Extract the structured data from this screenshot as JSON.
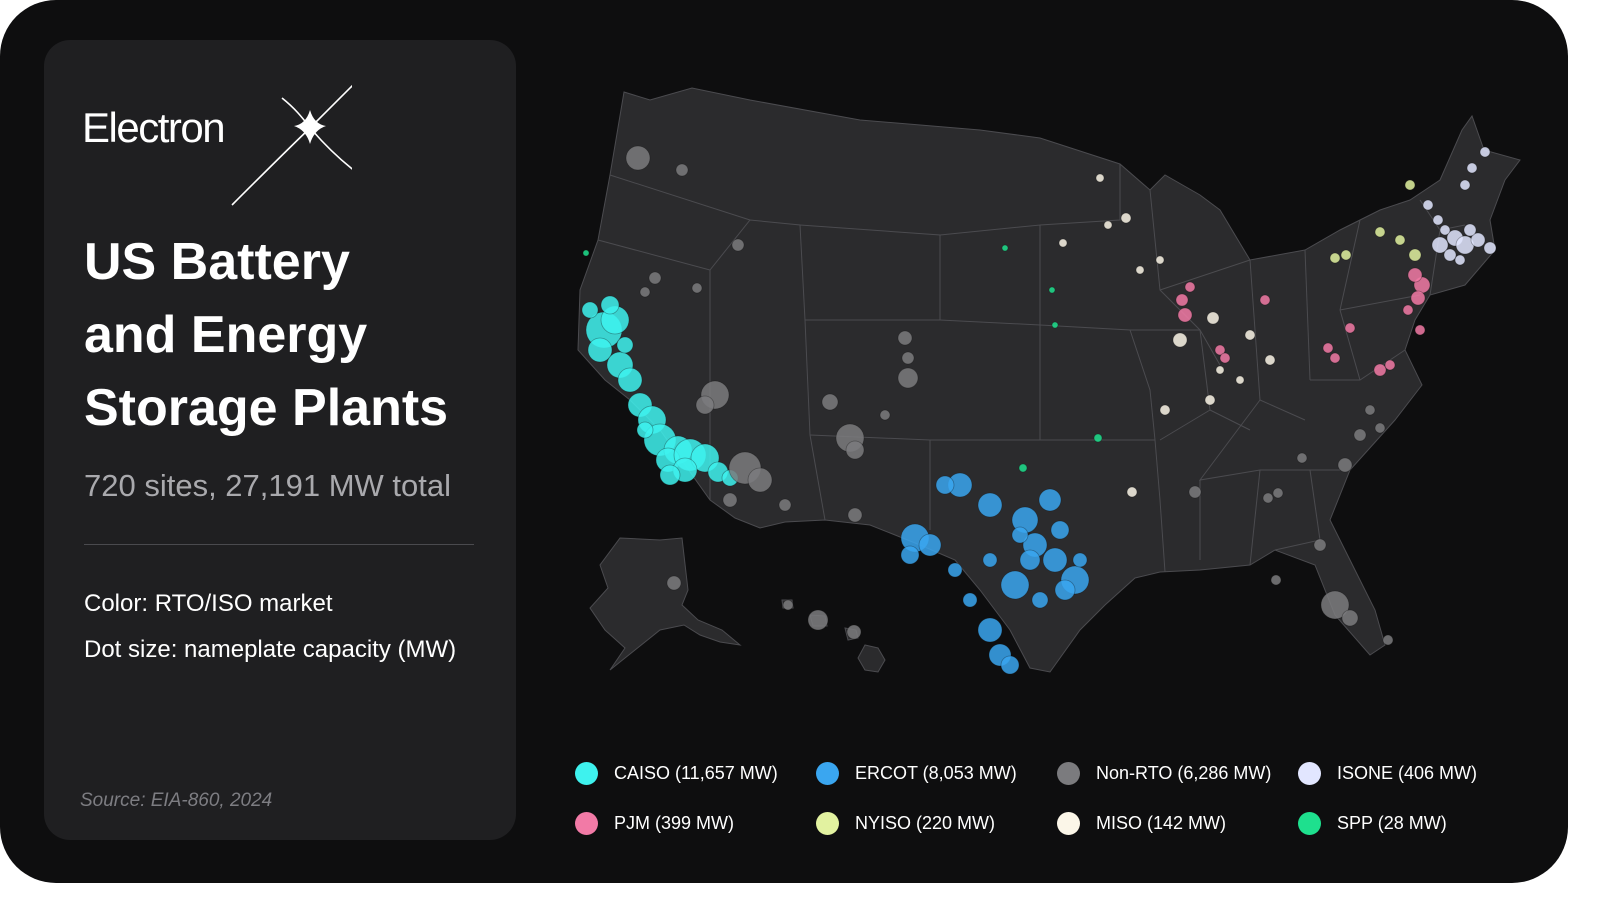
{
  "brand": {
    "logo_text": "Electron"
  },
  "panel": {
    "title_lines": [
      "US Battery",
      "and Energy",
      "Storage Plants"
    ],
    "subtitle": "720 sites, 27,191 MW total",
    "color_note": "Color: RTO/ISO market",
    "size_note": "Dot size: nameplate capacity (MW)",
    "source": "Source: EIA-860, 2024"
  },
  "colors": {
    "background": "#0e0e0f",
    "panel": "#1f1f21",
    "land": "#2b2b2d",
    "state_border": "#4b4b4f"
  },
  "legend": [
    {
      "key": "caiso",
      "label": "CAISO (11,657 MW)",
      "color": "#3ef2ee"
    },
    {
      "key": "ercot",
      "label": "ERCOT (8,053 MW)",
      "color": "#3aa6f0"
    },
    {
      "key": "nonrto",
      "label": "Non-RTO (6,286 MW)",
      "color": "#7b7b7e"
    },
    {
      "key": "isone",
      "label": "ISONE (406 MW)",
      "color": "#e2e6ff"
    },
    {
      "key": "pjm",
      "label": "PJM (399 MW)",
      "color": "#f27aa6"
    },
    {
      "key": "nyiso",
      "label": "NYISO (220 MW)",
      "color": "#e2f2a0"
    },
    {
      "key": "miso",
      "label": "MISO (142 MW)",
      "color": "#fbf6e8"
    },
    {
      "key": "spp",
      "label": "SPP (28 MW)",
      "color": "#1ee08e"
    }
  ],
  "map_data": {
    "type": "bubble-map",
    "region": "United States",
    "color_encoding": "RTO/ISO market",
    "size_encoding": "nameplate capacity (MW)"
  }
}
